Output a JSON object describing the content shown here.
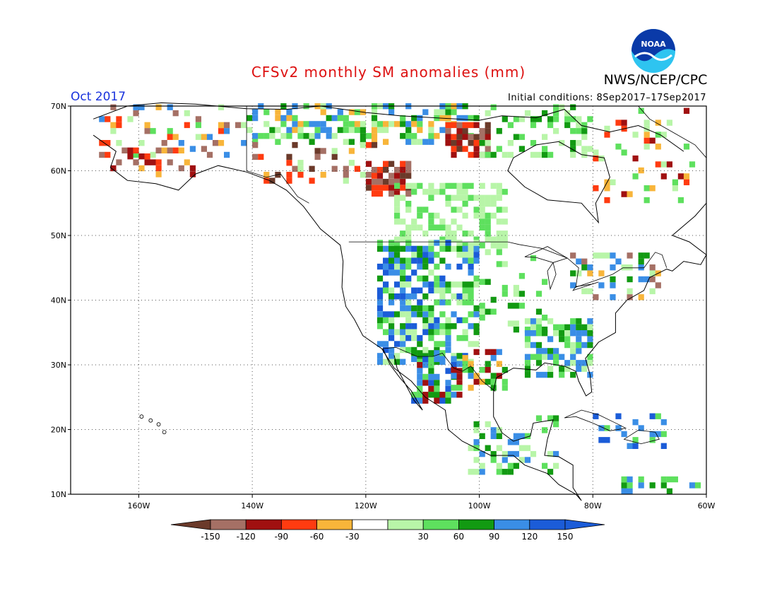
{
  "header": {
    "title": "CFSv2 monthly SM anomalies (mm)",
    "agency": "NWS/NCEP/CPC",
    "period": "Oct 2017",
    "initial_conditions": "Initial conditions: 8Sep2017–17Sep2017",
    "logo_text": "NOAA"
  },
  "map": {
    "lon_range": [
      -172,
      -60
    ],
    "lat_range": [
      10,
      70
    ],
    "lon_labels": [
      "160W",
      "140W",
      "120W",
      "100W",
      "80W",
      "60W"
    ],
    "lat_labels": [
      "10N",
      "20N",
      "30N",
      "40N",
      "50N",
      "60N",
      "70N"
    ]
  },
  "legend": {
    "colors": [
      "#6b3a2a",
      "#a57065",
      "#a01010",
      "#ff3b10",
      "#f8b53a",
      "#ffffff",
      "#b8f5a8",
      "#5ee05e",
      "#129a12",
      "#3a8ee6",
      "#1b5cd8"
    ],
    "ticks": [
      "-150",
      "-120",
      "-90",
      "-60",
      "-30",
      "30",
      "60",
      "90",
      "120",
      "150"
    ]
  },
  "colors": {
    "title": "#dd1010",
    "period": "#1a33dd",
    "noaa_blue": "#0a3aa8",
    "noaa_cyan": "#2ec4f0"
  }
}
